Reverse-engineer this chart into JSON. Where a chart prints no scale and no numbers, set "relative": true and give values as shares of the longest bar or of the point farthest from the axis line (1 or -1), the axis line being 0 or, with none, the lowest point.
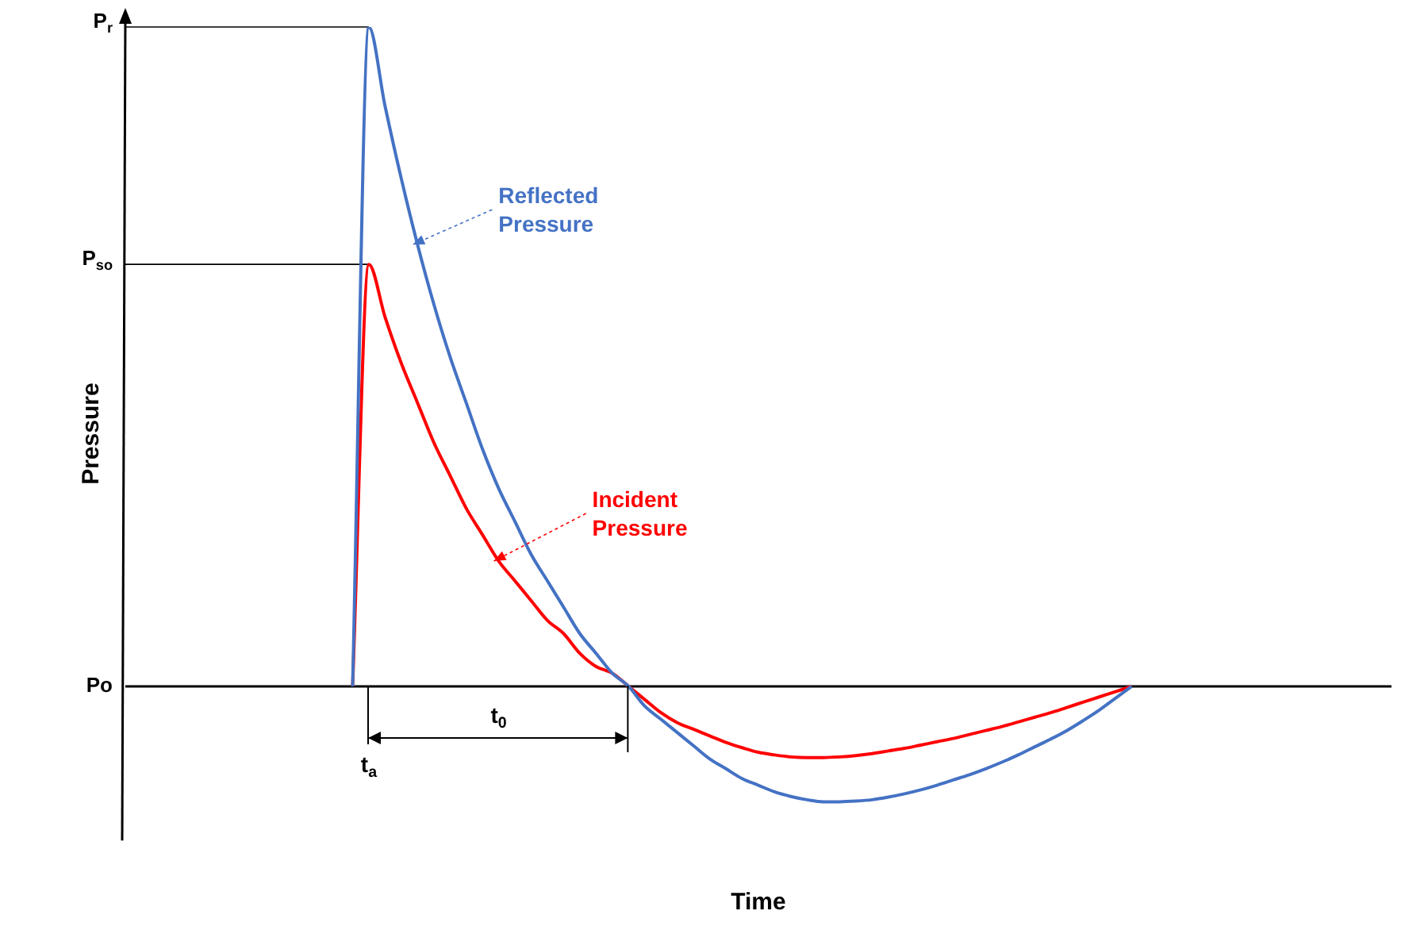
{
  "chart_data": {
    "type": "line",
    "relative": true,
    "xlabel": "Time",
    "ylabel": "Pressure",
    "categories": [
      null,
      null,
      null,
      null,
      null,
      null,
      null,
      null,
      null,
      null,
      null,
      null,
      null,
      null,
      null,
      null,
      null,
      null,
      null,
      null,
      null,
      null,
      null,
      null,
      null,
      null,
      null,
      null,
      null,
      null,
      null,
      null,
      null,
      null,
      null,
      null,
      null,
      null,
      null,
      null,
      null,
      null,
      null,
      null,
      null,
      null,
      null,
      null,
      null,
      null,
      null,
      null,
      null,
      null,
      null,
      null,
      null,
      null,
      null,
      null,
      null,
      null,
      null,
      null,
      null,
      null,
      null,
      null,
      null,
      null,
      null,
      null,
      null,
      null,
      null,
      null,
      null,
      null,
      null
    ],
    "series": [
      {
        "name": "Reflected Pressure",
        "color": "#4472c4",
        "values": [
          null,
          null,
          null,
          null,
          null,
          null,
          null,
          null,
          null,
          null,
          null,
          null,
          null,
          null,
          0,
          1,
          0.88,
          0.77,
          0.67,
          0.58,
          0.5,
          0.43,
          0.36,
          0.3,
          0.25,
          0.2,
          0.16,
          0.12,
          0.08,
          0.05,
          0.02,
          0,
          -0.03,
          -0.05,
          -0.07,
          -0.09,
          -0.11,
          -0.125,
          -0.14,
          -0.15,
          -0.16,
          -0.167,
          -0.172,
          -0.175,
          -0.175,
          -0.174,
          -0.172,
          -0.168,
          -0.163,
          -0.157,
          -0.15,
          -0.142,
          -0.134,
          -0.125,
          -0.115,
          -0.104,
          -0.092,
          -0.08,
          -0.067,
          -0.052,
          -0.036,
          -0.018,
          0,
          null,
          null,
          null,
          null,
          null,
          null,
          null,
          null,
          null,
          null,
          null,
          null,
          null,
          null,
          null,
          null
        ]
      },
      {
        "name": "Incident Pressure",
        "color": "#ff0000",
        "values": [
          null,
          null,
          null,
          null,
          null,
          null,
          null,
          null,
          null,
          null,
          null,
          null,
          null,
          null,
          0,
          0.64,
          0.56,
          0.49,
          0.43,
          0.37,
          0.32,
          0.27,
          0.23,
          0.19,
          0.16,
          0.13,
          0.1,
          0.08,
          0.05,
          0.03,
          0.02,
          0,
          -0.02,
          -0.04,
          -0.055,
          -0.065,
          -0.075,
          -0.085,
          -0.093,
          -0.1,
          -0.104,
          -0.107,
          -0.108,
          -0.108,
          -0.107,
          -0.105,
          -0.102,
          -0.098,
          -0.094,
          -0.089,
          -0.084,
          -0.079,
          -0.073,
          -0.067,
          -0.061,
          -0.054,
          -0.047,
          -0.04,
          -0.032,
          -0.024,
          -0.016,
          -0.008,
          0,
          null,
          null,
          null,
          null,
          null,
          null,
          null,
          null,
          null,
          null,
          null,
          null,
          null,
          null,
          null,
          null
        ]
      }
    ],
    "ref_lines": [
      {
        "axis": "y",
        "value": 1,
        "label": "P$_{r}$"
      },
      {
        "axis": "y",
        "value": 0.64,
        "label": "P$_{so}$"
      },
      {
        "axis": "y",
        "value": 0,
        "label": "Po"
      }
    ],
    "annotations": [
      "t$_{a}$",
      "t$_{0}$"
    ],
    "grid": false,
    "legend": false,
    "marker": "none",
    "line_style": "solid"
  }
}
